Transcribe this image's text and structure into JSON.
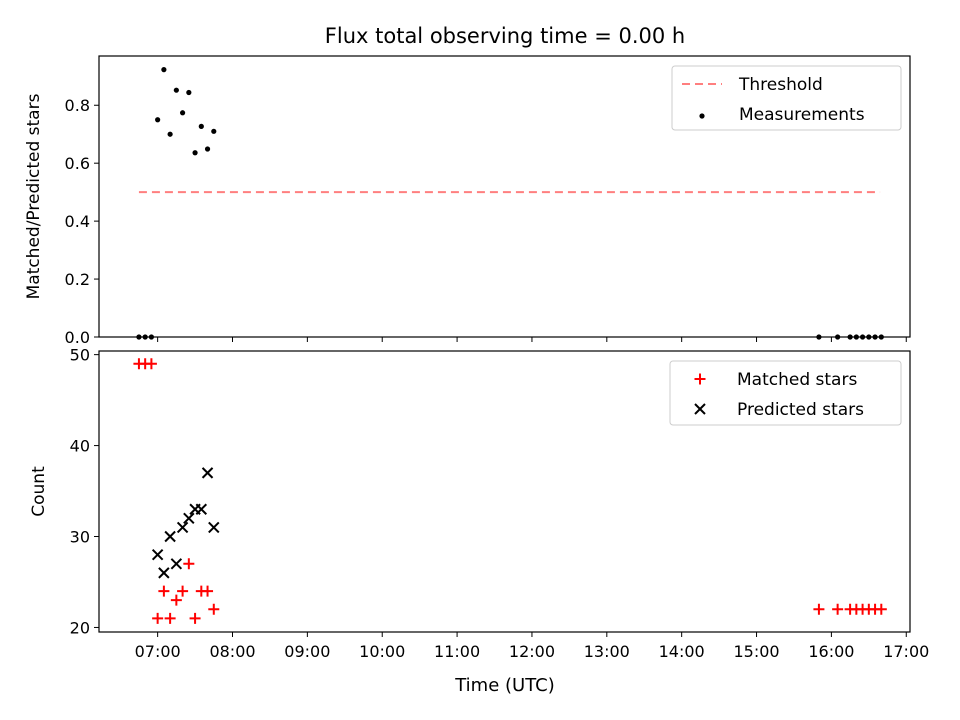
{
  "title": "Flux total observing time = 0.00 h",
  "xlabel": "Time (UTC)",
  "x_ticks": [
    "07:00",
    "08:00",
    "09:00",
    "10:00",
    "11:00",
    "12:00",
    "13:00",
    "14:00",
    "15:00",
    "16:00",
    "17:00"
  ],
  "colors": {
    "threshold": "#ff7f7f",
    "matched": "#ff0000",
    "predicted": "#000000",
    "measurements": "#000000"
  },
  "chart_data": [
    {
      "type": "scatter",
      "ylabel": "Matched/Predicted stars",
      "xlim": [
        "06:13",
        "17:03"
      ],
      "ylim": [
        0.0,
        0.97
      ],
      "y_ticks": [
        "0.0",
        "0.2",
        "0.4",
        "0.6",
        "0.8"
      ],
      "legend_position": "top-right",
      "series": [
        {
          "name": "Threshold",
          "style": "dashed-line",
          "points": [
            [
              "06:45",
              0.5
            ],
            [
              "16:39",
              0.5
            ]
          ]
        },
        {
          "name": "Measurements",
          "style": "dot",
          "points": [
            [
              "06:45",
              0.0
            ],
            [
              "06:50",
              0.0
            ],
            [
              "06:55",
              0.0
            ],
            [
              "07:00",
              0.75
            ],
            [
              "07:05",
              0.923
            ],
            [
              "07:10",
              0.7
            ],
            [
              "07:15",
              0.852
            ],
            [
              "07:20",
              0.774
            ],
            [
              "07:25",
              0.844
            ],
            [
              "07:30",
              0.636
            ],
            [
              "07:35",
              0.727
            ],
            [
              "07:40",
              0.649
            ],
            [
              "07:45",
              0.71
            ],
            [
              "15:50",
              0.0
            ],
            [
              "16:05",
              0.0
            ],
            [
              "16:15",
              0.0
            ],
            [
              "16:20",
              0.0
            ],
            [
              "16:25",
              0.0
            ],
            [
              "16:30",
              0.0
            ],
            [
              "16:35",
              0.0
            ],
            [
              "16:40",
              0.0
            ]
          ]
        }
      ]
    },
    {
      "type": "scatter",
      "ylabel": "Count",
      "xlim": [
        "06:13",
        "17:03"
      ],
      "ylim": [
        19.5,
        50.4
      ],
      "y_ticks": [
        "20",
        "30",
        "40",
        "50"
      ],
      "legend_position": "top-right",
      "series": [
        {
          "name": "Matched stars",
          "style": "plus",
          "points": [
            [
              "06:45",
              49
            ],
            [
              "06:50",
              49
            ],
            [
              "06:55",
              49
            ],
            [
              "07:00",
              21
            ],
            [
              "07:05",
              24
            ],
            [
              "07:10",
              21
            ],
            [
              "07:15",
              23
            ],
            [
              "07:20",
              24
            ],
            [
              "07:25",
              27
            ],
            [
              "07:30",
              21
            ],
            [
              "07:35",
              24
            ],
            [
              "07:40",
              24
            ],
            [
              "07:45",
              22
            ],
            [
              "15:50",
              22
            ],
            [
              "16:05",
              22
            ],
            [
              "16:15",
              22
            ],
            [
              "16:20",
              22
            ],
            [
              "16:25",
              22
            ],
            [
              "16:30",
              22
            ],
            [
              "16:35",
              22
            ],
            [
              "16:40",
              22
            ]
          ]
        },
        {
          "name": "Predicted stars",
          "style": "x",
          "points": [
            [
              "07:00",
              28
            ],
            [
              "07:05",
              26
            ],
            [
              "07:10",
              30
            ],
            [
              "07:15",
              27
            ],
            [
              "07:20",
              31
            ],
            [
              "07:25",
              32
            ],
            [
              "07:30",
              33
            ],
            [
              "07:35",
              33
            ],
            [
              "07:40",
              37
            ],
            [
              "07:45",
              31
            ]
          ]
        }
      ]
    }
  ]
}
